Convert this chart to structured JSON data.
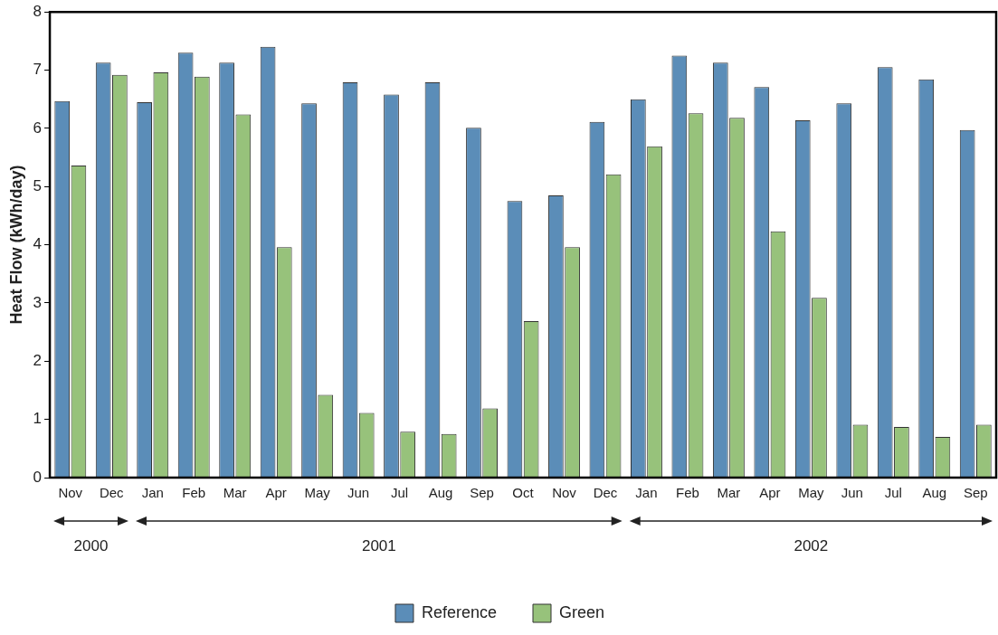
{
  "chart_data": {
    "type": "bar",
    "ylabel": "Heat Flow (kWh/day)",
    "categories": [
      "Nov",
      "Dec",
      "Jan",
      "Feb",
      "Mar",
      "Apr",
      "May",
      "Jun",
      "Jul",
      "Aug",
      "Sep",
      "Oct",
      "Nov",
      "Dec",
      "Jan",
      "Feb",
      "Mar",
      "Apr",
      "May",
      "Jun",
      "Jul",
      "Aug",
      "Sep"
    ],
    "series": [
      {
        "name": "Reference",
        "color": "#5b8db8",
        "values": [
          6.47,
          7.13,
          6.45,
          7.3,
          7.13,
          7.4,
          6.43,
          6.79,
          6.58,
          6.79,
          6.01,
          4.75,
          4.85,
          6.11,
          6.5,
          7.25,
          7.13,
          6.71,
          6.14,
          6.43,
          7.05,
          6.84,
          5.97
        ]
      },
      {
        "name": "Green",
        "color": "#97c27b",
        "values": [
          5.36,
          6.92,
          6.96,
          6.89,
          6.24,
          3.96,
          1.42,
          1.11,
          0.79,
          0.75,
          1.19,
          2.69,
          3.96,
          5.21,
          5.69,
          6.26,
          6.18,
          4.23,
          3.09,
          0.91,
          0.87,
          0.7,
          0.91
        ]
      }
    ],
    "ylim": [
      0,
      8
    ],
    "yticks": [
      0,
      1,
      2,
      3,
      4,
      5,
      6,
      7,
      8
    ],
    "grid": false,
    "legend": "bottom",
    "annotations": [
      "2000",
      "2001",
      "2002"
    ]
  }
}
